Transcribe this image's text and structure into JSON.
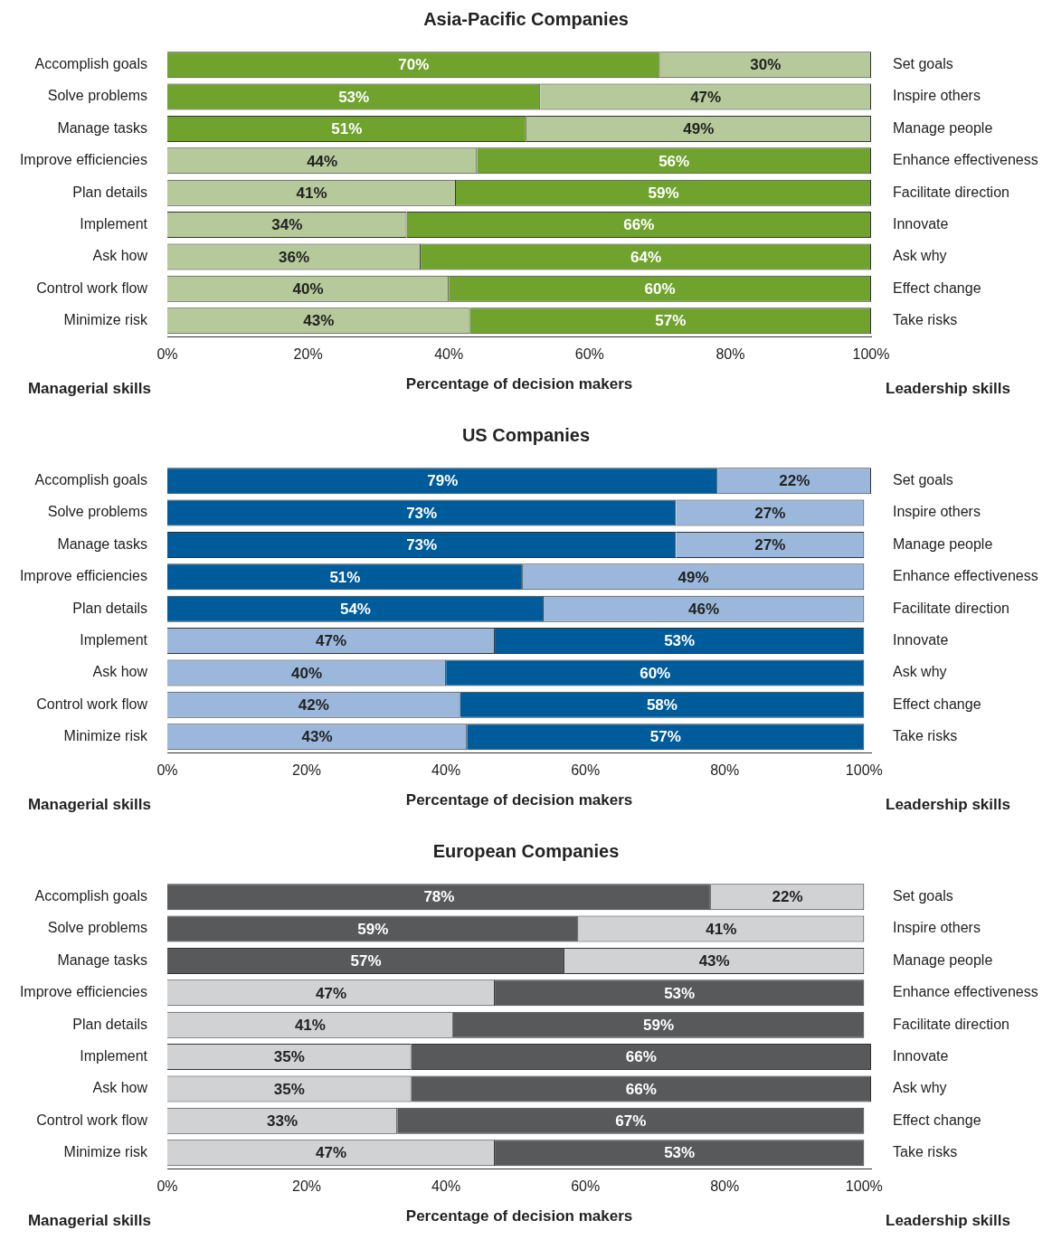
{
  "chart_data": [
    {
      "type": "bar",
      "orientation": "horizontal",
      "stacked": true,
      "title": "Asia-Pacific Companies",
      "xlabel": "Percentage of decision makers",
      "annotations": [
        "Managerial skills",
        "Leadership skills"
      ],
      "categories": [
        "Accomplish goals",
        "Solve problems",
        "Manage tasks",
        "Improve efficiencies",
        "Plan details",
        "Implement",
        "Ask how",
        "Control work flow",
        "Minimize risk"
      ],
      "y2_categories": [
        "Set goals",
        "Inspire others",
        "Manage people",
        "Enhance effectiveness",
        "Facilitate direction",
        "Innovate",
        "Ask why",
        "Effect change",
        "Take risks"
      ],
      "xlim": [
        0,
        100
      ],
      "xticks": [
        {
          "value": 0,
          "label": "0%"
        },
        {
          "value": 20,
          "label": "20%"
        },
        {
          "value": 40,
          "label": "40%"
        },
        {
          "value": 60,
          "label": "60%"
        },
        {
          "value": 80,
          "label": "80%"
        },
        {
          "value": 100,
          "label": "100%"
        }
      ],
      "series": [
        {
          "values": [
            70,
            53,
            51,
            44,
            41,
            34,
            36,
            40,
            43
          ],
          "colors": [
            "#6fa32e",
            "#6fa32e",
            "#6fa32e",
            "#b5c99a",
            "#b5c99a",
            "#b5c99a",
            "#b5c99a",
            "#b5c99a",
            "#b5c99a"
          ],
          "value_labels": [
            "70%",
            "53%",
            "51%",
            "44%",
            "41%",
            "34%",
            "36%",
            "40%",
            "43%"
          ]
        },
        {
          "values": [
            30,
            47,
            49,
            56,
            59,
            66,
            64,
            60,
            57
          ],
          "colors": [
            "#b5c99a",
            "#b5c99a",
            "#b5c99a",
            "#6fa32e",
            "#6fa32e",
            "#6fa32e",
            "#6fa32e",
            "#6fa32e",
            "#6fa32e"
          ],
          "value_labels": [
            "30%",
            "47%",
            "49%",
            "56%",
            "59%",
            "66%",
            "64%",
            "60%",
            "57%"
          ]
        }
      ]
    },
    {
      "type": "bar",
      "orientation": "horizontal",
      "stacked": true,
      "title": "US Companies",
      "xlabel": "Percentage of decision makers",
      "annotations": [
        "Managerial skills",
        "Leadership skills"
      ],
      "categories": [
        "Accomplish goals",
        "Solve problems",
        "Manage tasks",
        "Improve efficiencies",
        "Plan details",
        "Implement",
        "Ask how",
        "Control work flow",
        "Minimize risk"
      ],
      "y2_categories": [
        "Set goals",
        "Inspire others",
        "Manage people",
        "Enhance effectiveness",
        "Facilitate direction",
        "Innovate",
        "Ask why",
        "Effect change",
        "Take risks"
      ],
      "xlim": [
        0,
        101
      ],
      "xticks": [
        {
          "value": 0,
          "label": "0%"
        },
        {
          "value": 20,
          "label": "20%"
        },
        {
          "value": 40,
          "label": "40%"
        },
        {
          "value": 60,
          "label": "60%"
        },
        {
          "value": 80,
          "label": "80%"
        },
        {
          "value": 100,
          "label": "100%"
        }
      ],
      "series": [
        {
          "values": [
            79,
            73,
            73,
            51,
            54,
            47,
            40,
            42,
            43
          ],
          "colors": [
            "#005b9a",
            "#005b9a",
            "#005b9a",
            "#005b9a",
            "#005b9a",
            "#9bb8dc",
            "#9bb8dc",
            "#9bb8dc",
            "#9bb8dc"
          ],
          "value_labels": [
            "79%",
            "73%",
            "73%",
            "51%",
            "54%",
            "47%",
            "40%",
            "42%",
            "43%"
          ]
        },
        {
          "values": [
            22,
            27,
            27,
            49,
            46,
            53,
            60,
            58,
            57
          ],
          "colors": [
            "#9bb8dc",
            "#9bb8dc",
            "#9bb8dc",
            "#9bb8dc",
            "#9bb8dc",
            "#005b9a",
            "#005b9a",
            "#005b9a",
            "#005b9a"
          ],
          "value_labels": [
            "22%",
            "27%",
            "27%",
            "49%",
            "46%",
            "53%",
            "60%",
            "58%",
            "57%"
          ]
        }
      ]
    },
    {
      "type": "bar",
      "orientation": "horizontal",
      "stacked": true,
      "title": "European Companies",
      "xlabel": "Percentage of decision makers",
      "annotations": [
        "Managerial skills",
        "Leadership skills"
      ],
      "categories": [
        "Accomplish goals",
        "Solve problems",
        "Manage tasks",
        "Improve efficiencies",
        "Plan details",
        "Implement",
        "Ask how",
        "Control work flow",
        "Minimize risk"
      ],
      "y2_categories": [
        "Set goals",
        "Inspire others",
        "Manage people",
        "Enhance effectiveness",
        "Facilitate direction",
        "Innovate",
        "Ask why",
        "Effect change",
        "Take risks"
      ],
      "xlim": [
        0,
        101
      ],
      "xticks": [
        {
          "value": 0,
          "label": "0%"
        },
        {
          "value": 20,
          "label": "20%"
        },
        {
          "value": 40,
          "label": "40%"
        },
        {
          "value": 60,
          "label": "60%"
        },
        {
          "value": 80,
          "label": "80%"
        },
        {
          "value": 100,
          "label": "100%"
        }
      ],
      "series": [
        {
          "values": [
            78,
            59,
            57,
            47,
            41,
            35,
            35,
            33,
            47
          ],
          "colors": [
            "#58595b",
            "#58595b",
            "#58595b",
            "#d1d2d4",
            "#d1d2d4",
            "#d1d2d4",
            "#d1d2d4",
            "#d1d2d4",
            "#d1d2d4"
          ],
          "value_labels": [
            "78%",
            "59%",
            "57%",
            "47%",
            "41%",
            "35%",
            "35%",
            "33%",
            "47%"
          ]
        },
        {
          "values": [
            22,
            41,
            43,
            53,
            59,
            66,
            66,
            67,
            53
          ],
          "colors": [
            "#d1d2d4",
            "#d1d2d4",
            "#d1d2d4",
            "#58595b",
            "#58595b",
            "#58595b",
            "#58595b",
            "#58595b",
            "#58595b"
          ],
          "value_labels": [
            "22%",
            "41%",
            "43%",
            "53%",
            "59%",
            "66%",
            "66%",
            "67%",
            "53%"
          ]
        }
      ]
    }
  ]
}
